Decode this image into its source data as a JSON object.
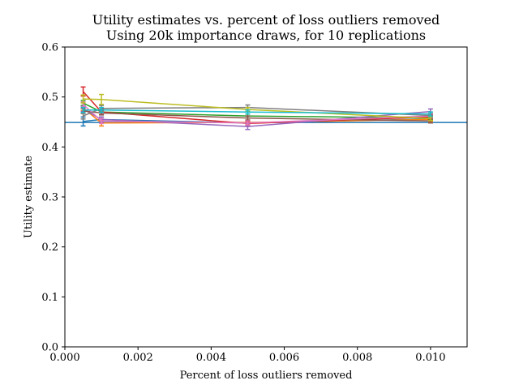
{
  "chart_data": {
    "type": "line",
    "title": "Utility estimates vs. percent of loss outliers removed",
    "subtitle": "Using 20k importance draws, for 10 replications",
    "xlabel": "Percent of loss outliers removed",
    "ylabel": "Utility estimate",
    "xlim": [
      0.0,
      0.011
    ],
    "ylim": [
      0.0,
      0.6
    ],
    "xticks": [
      0.0,
      0.002,
      0.004,
      0.006,
      0.008,
      0.01
    ],
    "xtick_labels": [
      "0.000",
      "0.002",
      "0.004",
      "0.006",
      "0.008",
      "0.010"
    ],
    "yticks": [
      0.0,
      0.1,
      0.2,
      0.3,
      0.4,
      0.5,
      0.6
    ],
    "ytick_labels": [
      "0.0",
      "0.1",
      "0.2",
      "0.3",
      "0.4",
      "0.5",
      "0.6"
    ],
    "grid": false,
    "legend": "none",
    "x": [
      0.0005,
      0.001,
      0.005,
      0.01
    ],
    "reference_line": {
      "y": 0.449,
      "color": "#1f77b4"
    },
    "series": [
      {
        "color": "#1f77b4",
        "values": [
          0.451,
          0.455,
          0.448,
          0.456
        ],
        "err": [
          0.009,
          0.005,
          0.004,
          0.004
        ]
      },
      {
        "color": "#ff7f0e",
        "values": [
          0.478,
          0.448,
          0.449,
          0.455
        ],
        "err": [
          0.005,
          0.006,
          0.004,
          0.004
        ]
      },
      {
        "color": "#2ca02c",
        "values": [
          0.488,
          0.47,
          0.462,
          0.458
        ],
        "err": [
          0.005,
          0.005,
          0.004,
          0.004
        ]
      },
      {
        "color": "#d62728",
        "values": [
          0.511,
          0.47,
          0.447,
          0.46
        ],
        "err": [
          0.009,
          0.005,
          0.004,
          0.004
        ]
      },
      {
        "color": "#9467bd",
        "values": [
          0.476,
          0.455,
          0.441,
          0.471
        ],
        "err": [
          0.005,
          0.005,
          0.006,
          0.005
        ]
      },
      {
        "color": "#8c564b",
        "values": [
          0.472,
          0.468,
          0.458,
          0.452
        ],
        "err": [
          0.005,
          0.004,
          0.004,
          0.004
        ]
      },
      {
        "color": "#e377c2",
        "values": [
          0.485,
          0.452,
          0.448,
          0.462
        ],
        "err": [
          0.005,
          0.005,
          0.004,
          0.004
        ]
      },
      {
        "color": "#7f7f7f",
        "values": [
          0.462,
          0.477,
          0.479,
          0.463
        ],
        "err": [
          0.006,
          0.006,
          0.005,
          0.004
        ]
      },
      {
        "color": "#bcbd22",
        "values": [
          0.496,
          0.495,
          0.475,
          0.457
        ],
        "err": [
          0.008,
          0.01,
          0.004,
          0.004
        ]
      },
      {
        "color": "#17becf",
        "values": [
          0.474,
          0.474,
          0.47,
          0.466
        ],
        "err": [
          0.005,
          0.005,
          0.004,
          0.004
        ]
      }
    ]
  }
}
